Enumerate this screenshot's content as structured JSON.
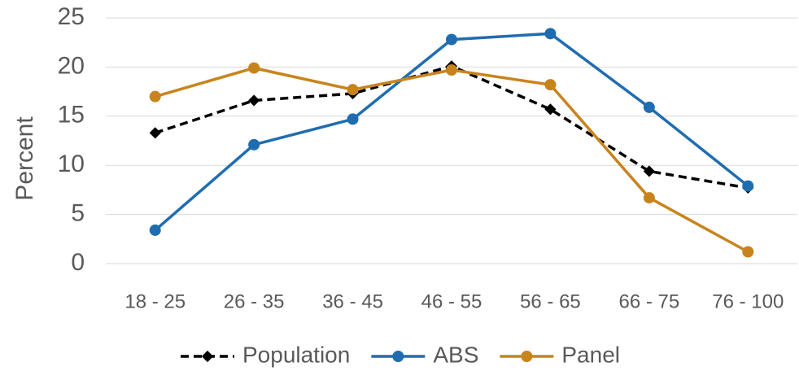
{
  "chart_data": {
    "type": "line",
    "y_label": "Percent",
    "categories": [
      "18 - 25",
      "26 - 35",
      "36 - 45",
      "46 - 55",
      "56 - 65",
      "66 - 75",
      "76 - 100"
    ],
    "series": [
      {
        "name": "Population",
        "color": "#000000",
        "dashed": true,
        "values": [
          13.3,
          16.6,
          17.3,
          20.1,
          15.7,
          9.4,
          7.7
        ]
      },
      {
        "name": "ABS",
        "color": "#1f6db0",
        "dashed": false,
        "values": [
          3.4,
          12.1,
          14.7,
          22.8,
          23.4,
          15.9,
          7.9
        ]
      },
      {
        "name": "Panel",
        "color": "#c8841c",
        "dashed": false,
        "values": [
          17.0,
          19.9,
          17.7,
          19.7,
          18.2,
          6.7,
          1.2
        ]
      }
    ],
    "ylim": [
      0,
      25
    ],
    "yticks": [
      0,
      5,
      10,
      15,
      20,
      25
    ],
    "grid": true,
    "legend": "bottom"
  }
}
